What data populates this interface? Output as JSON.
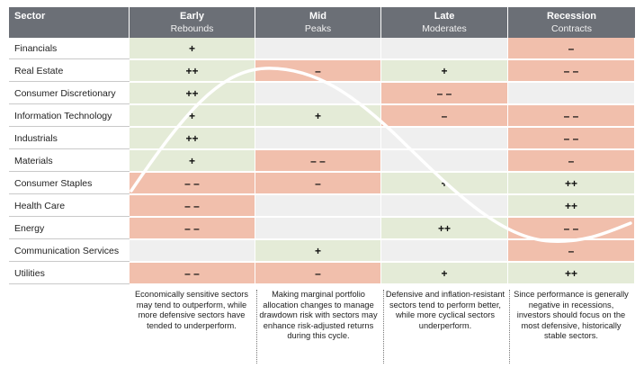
{
  "header": {
    "sector_label": "Sector",
    "phases": [
      {
        "name": "Early",
        "sub": "Rebounds"
      },
      {
        "name": "Mid",
        "sub": "Peaks"
      },
      {
        "name": "Late",
        "sub": "Moderates"
      },
      {
        "name": "Recession",
        "sub": "Contracts"
      }
    ]
  },
  "colors": {
    "favorable": "#e4ebd7",
    "unfavorable": "#f1bfac",
    "neutral": "#efefef",
    "header": "#6b6f76"
  },
  "sectors": [
    {
      "name": "Financials",
      "cells": [
        {
          "v": "+",
          "c": "g"
        },
        {
          "v": "",
          "c": "n"
        },
        {
          "v": "",
          "c": "n"
        },
        {
          "v": "–",
          "c": "r"
        }
      ]
    },
    {
      "name": "Real Estate",
      "cells": [
        {
          "v": "++",
          "c": "g"
        },
        {
          "v": "–",
          "c": "r"
        },
        {
          "v": "+",
          "c": "g"
        },
        {
          "v": "– –",
          "c": "r"
        }
      ]
    },
    {
      "name": "Consumer Discretionary",
      "cells": [
        {
          "v": "++",
          "c": "g"
        },
        {
          "v": "",
          "c": "n"
        },
        {
          "v": "– –",
          "c": "r"
        },
        {
          "v": "",
          "c": "n"
        }
      ]
    },
    {
      "name": "Information Technology",
      "cells": [
        {
          "v": "+",
          "c": "g"
        },
        {
          "v": "+",
          "c": "g"
        },
        {
          "v": "–",
          "c": "r"
        },
        {
          "v": "– –",
          "c": "r"
        }
      ]
    },
    {
      "name": "Industrials",
      "cells": [
        {
          "v": "++",
          "c": "g"
        },
        {
          "v": "",
          "c": "n"
        },
        {
          "v": "",
          "c": "n"
        },
        {
          "v": "– –",
          "c": "r"
        }
      ]
    },
    {
      "name": "Materials",
      "cells": [
        {
          "v": "+",
          "c": "g"
        },
        {
          "v": "– –",
          "c": "r"
        },
        {
          "v": "",
          "c": "n"
        },
        {
          "v": "–",
          "c": "r"
        }
      ]
    },
    {
      "name": "Consumer Staples",
      "cells": [
        {
          "v": "– –",
          "c": "r"
        },
        {
          "v": "–",
          "c": "r"
        },
        {
          "v": "+",
          "c": "g"
        },
        {
          "v": "++",
          "c": "g"
        }
      ]
    },
    {
      "name": "Health Care",
      "cells": [
        {
          "v": "– –",
          "c": "r"
        },
        {
          "v": "",
          "c": "n"
        },
        {
          "v": "",
          "c": "n"
        },
        {
          "v": "++",
          "c": "g"
        }
      ]
    },
    {
      "name": "Energy",
      "cells": [
        {
          "v": "– –",
          "c": "r"
        },
        {
          "v": "",
          "c": "n"
        },
        {
          "v": "++",
          "c": "g"
        },
        {
          "v": "– –",
          "c": "r"
        }
      ]
    },
    {
      "name": "Communication Services",
      "cells": [
        {
          "v": "",
          "c": "n"
        },
        {
          "v": "+",
          "c": "g"
        },
        {
          "v": "",
          "c": "n"
        },
        {
          "v": "–",
          "c": "r"
        }
      ]
    },
    {
      "name": "Utilities",
      "cells": [
        {
          "v": "– –",
          "c": "r"
        },
        {
          "v": "–",
          "c": "r"
        },
        {
          "v": "+",
          "c": "g"
        },
        {
          "v": "++",
          "c": "g"
        }
      ]
    }
  ],
  "notes": [
    "Economically sensitive sectors may tend to outperform, while more defensive sectors have tended to underperform.",
    "Making marginal portfolio allocation changes to manage drawdown risk with sectors may enhance risk-adjusted returns during this cycle.",
    "Defensive and inflation-resistant sectors tend to perform better, while more cyclical sectors underperform.",
    "Since performance is generally negative in recessions, investors should focus on the most defensive, historically stable sectors."
  ]
}
